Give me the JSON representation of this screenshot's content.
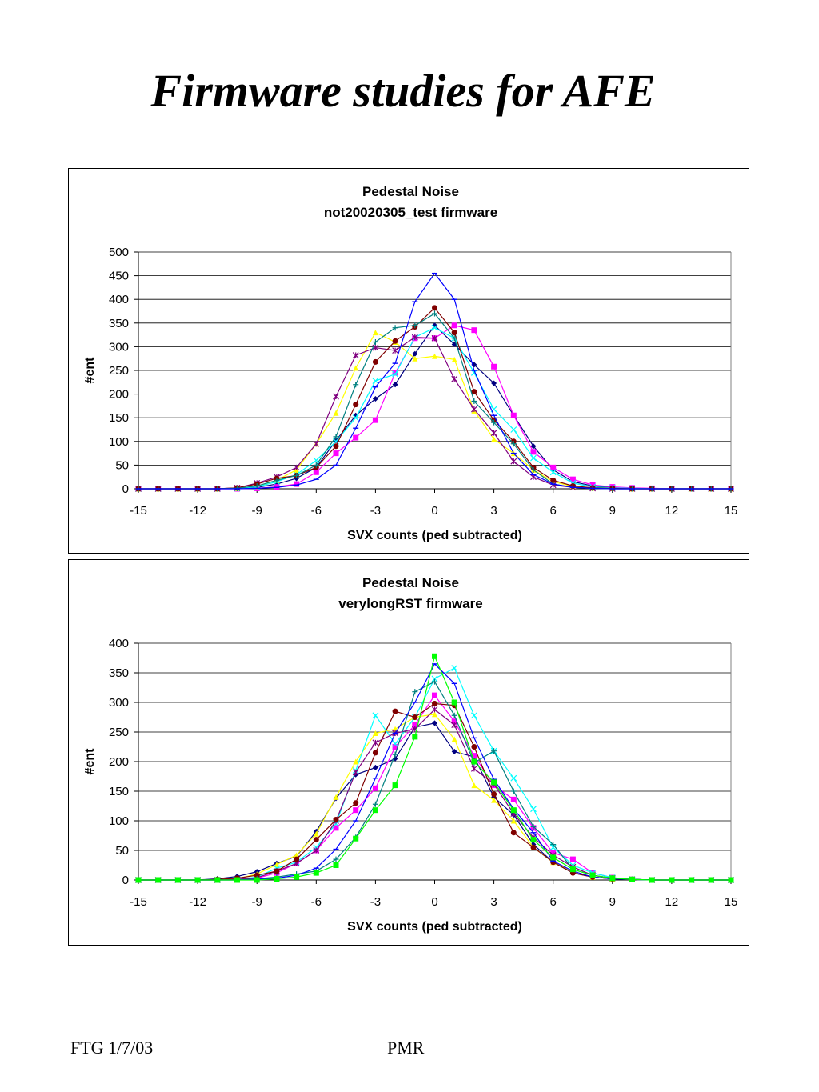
{
  "page": {
    "title": "Firmware studies for AFE",
    "footer_left": "FTG 1/7/03",
    "footer_center": "PMR"
  },
  "series_colors": [
    "#000080",
    "#ff00ff",
    "#ffff00",
    "#00ffff",
    "#800080",
    "#800000",
    "#008080",
    "#0000ff",
    "#00ff00"
  ],
  "chart_data": [
    {
      "type": "line",
      "title": "Pedestal Noise",
      "subtitle": "not20020305_test firmware",
      "xlabel": "SVX counts (ped subtracted)",
      "ylabel": "#ent",
      "xlim": [
        -15,
        15
      ],
      "ylim": [
        0,
        500
      ],
      "xticks": [
        -15,
        -12,
        -9,
        -6,
        -3,
        0,
        3,
        6,
        9,
        12,
        15
      ],
      "yticks": [
        0,
        50,
        100,
        150,
        200,
        250,
        300,
        350,
        400,
        450,
        500
      ],
      "grid": true,
      "legend": "none",
      "x": [
        -15,
        -14,
        -13,
        -12,
        -11,
        -10,
        -9,
        -8,
        -7,
        -6,
        -5,
        -4,
        -3,
        -2,
        -1,
        0,
        1,
        2,
        3,
        4,
        5,
        6,
        7,
        8,
        9,
        10,
        11,
        12,
        13,
        14,
        15
      ],
      "series": [
        {
          "marker": "diamond",
          "values": [
            0,
            0,
            0,
            0,
            0,
            1,
            3,
            10,
            22,
            45,
            102,
            155,
            190,
            220,
            285,
            345,
            305,
            262,
            223,
            155,
            90,
            40,
            15,
            6,
            3,
            1,
            0,
            0,
            0,
            0,
            0
          ]
        },
        {
          "marker": "square",
          "values": [
            0,
            0,
            0,
            0,
            0,
            0,
            1,
            4,
            10,
            35,
            75,
            108,
            145,
            245,
            318,
            318,
            345,
            335,
            258,
            155,
            78,
            45,
            20,
            8,
            4,
            2,
            1,
            0,
            0,
            0,
            0
          ]
        },
        {
          "marker": "triangle",
          "values": [
            0,
            0,
            0,
            0,
            0,
            1,
            5,
            18,
            40,
            95,
            160,
            255,
            330,
            310,
            275,
            280,
            273,
            165,
            105,
            75,
            40,
            15,
            5,
            2,
            1,
            0,
            0,
            0,
            0,
            0,
            0
          ]
        },
        {
          "marker": "x",
          "values": [
            0,
            0,
            0,
            0,
            0,
            1,
            4,
            15,
            30,
            60,
            100,
            150,
            228,
            242,
            320,
            340,
            318,
            245,
            168,
            125,
            65,
            35,
            12,
            4,
            2,
            1,
            0,
            0,
            0,
            0,
            0
          ]
        },
        {
          "marker": "star",
          "values": [
            0,
            0,
            0,
            0,
            0,
            2,
            12,
            25,
            45,
            95,
            195,
            282,
            298,
            292,
            320,
            318,
            232,
            168,
            118,
            58,
            25,
            8,
            3,
            1,
            0,
            0,
            0,
            0,
            0,
            0,
            0
          ]
        },
        {
          "marker": "circle",
          "values": [
            0,
            0,
            0,
            0,
            0,
            2,
            10,
            22,
            28,
            45,
            90,
            178,
            268,
            312,
            342,
            382,
            330,
            205,
            145,
            100,
            45,
            18,
            6,
            2,
            1,
            0,
            0,
            0,
            0,
            0,
            0
          ]
        },
        {
          "marker": "plus",
          "values": [
            0,
            0,
            0,
            0,
            0,
            1,
            6,
            18,
            28,
            50,
            110,
            220,
            310,
            340,
            345,
            370,
            318,
            185,
            140,
            95,
            40,
            10,
            3,
            1,
            0,
            0,
            0,
            0,
            0,
            0,
            0
          ]
        },
        {
          "marker": "dash",
          "values": [
            0,
            0,
            0,
            0,
            0,
            0,
            1,
            3,
            8,
            20,
            50,
            128,
            215,
            265,
            395,
            455,
            400,
            250,
            155,
            75,
            30,
            10,
            3,
            1,
            0,
            0,
            0,
            0,
            0,
            0,
            0
          ]
        }
      ]
    },
    {
      "type": "line",
      "title": "Pedestal Noise",
      "subtitle": "verylongRST firmware",
      "xlabel": "SVX counts (ped subtracted)",
      "ylabel": "#ent",
      "xlim": [
        -15,
        15
      ],
      "ylim": [
        0,
        400
      ],
      "xticks": [
        -15,
        -12,
        -9,
        -6,
        -3,
        0,
        3,
        6,
        9,
        12,
        15
      ],
      "yticks": [
        0,
        50,
        100,
        150,
        200,
        250,
        300,
        350,
        400
      ],
      "grid": true,
      "legend": "none",
      "x": [
        -15,
        -14,
        -13,
        -12,
        -11,
        -10,
        -9,
        -8,
        -7,
        -6,
        -5,
        -4,
        -3,
        -2,
        -1,
        0,
        1,
        2,
        3,
        4,
        5,
        6,
        7,
        8,
        9,
        10,
        11,
        12,
        13,
        14,
        15
      ],
      "series": [
        {
          "marker": "diamond",
          "values": [
            0,
            0,
            0,
            0,
            2,
            6,
            14,
            28,
            40,
            82,
            138,
            178,
            190,
            205,
            258,
            265,
            217,
            208,
            140,
            110,
            60,
            30,
            12,
            5,
            2,
            1,
            0,
            0,
            0,
            0,
            0
          ]
        },
        {
          "marker": "square",
          "values": [
            0,
            0,
            0,
            0,
            0,
            1,
            3,
            12,
            28,
            50,
            88,
            118,
            155,
            225,
            262,
            312,
            268,
            210,
            160,
            136,
            88,
            46,
            35,
            12,
            4,
            1,
            0,
            0,
            0,
            0,
            0
          ]
        },
        {
          "marker": "triangle",
          "values": [
            0,
            0,
            0,
            0,
            0,
            2,
            10,
            26,
            42,
            78,
            140,
            200,
            248,
            255,
            275,
            280,
            238,
            160,
            135,
            100,
            55,
            30,
            15,
            5,
            2,
            1,
            0,
            0,
            0,
            0,
            0
          ]
        },
        {
          "marker": "x",
          "values": [
            0,
            0,
            0,
            0,
            0,
            1,
            5,
            20,
            30,
            55,
            95,
            185,
            278,
            230,
            275,
            340,
            358,
            278,
            218,
            172,
            120,
            55,
            25,
            12,
            4,
            1,
            0,
            0,
            0,
            0,
            0
          ]
        },
        {
          "marker": "star",
          "values": [
            0,
            0,
            0,
            0,
            0,
            1,
            4,
            15,
            28,
            50,
            100,
            182,
            232,
            248,
            255,
            288,
            262,
            188,
            162,
            112,
            72,
            42,
            22,
            8,
            3,
            1,
            0,
            0,
            0,
            0,
            0
          ]
        },
        {
          "marker": "circle",
          "values": [
            0,
            0,
            0,
            0,
            1,
            3,
            8,
            15,
            35,
            68,
            102,
            130,
            215,
            285,
            275,
            298,
            295,
            225,
            145,
            80,
            55,
            30,
            12,
            5,
            2,
            1,
            0,
            0,
            0,
            0,
            0
          ]
        },
        {
          "marker": "plus",
          "values": [
            0,
            0,
            0,
            0,
            0,
            0,
            2,
            5,
            10,
            15,
            35,
            72,
            128,
            212,
            318,
            335,
            278,
            198,
            218,
            150,
            90,
            60,
            18,
            8,
            3,
            1,
            0,
            0,
            0,
            0,
            0
          ]
        },
        {
          "marker": "dash",
          "values": [
            0,
            0,
            0,
            0,
            0,
            0,
            1,
            3,
            8,
            20,
            52,
            100,
            172,
            248,
            300,
            365,
            332,
            240,
            170,
            120,
            80,
            32,
            15,
            5,
            2,
            1,
            0,
            0,
            0,
            0,
            0
          ]
        },
        {
          "marker": "square",
          "values": [
            0,
            0,
            0,
            0,
            0,
            0,
            0,
            2,
            5,
            12,
            25,
            70,
            118,
            160,
            242,
            378,
            300,
            200,
            165,
            118,
            68,
            38,
            18,
            8,
            3,
            1,
            0,
            0,
            0,
            0,
            0
          ]
        }
      ]
    }
  ]
}
